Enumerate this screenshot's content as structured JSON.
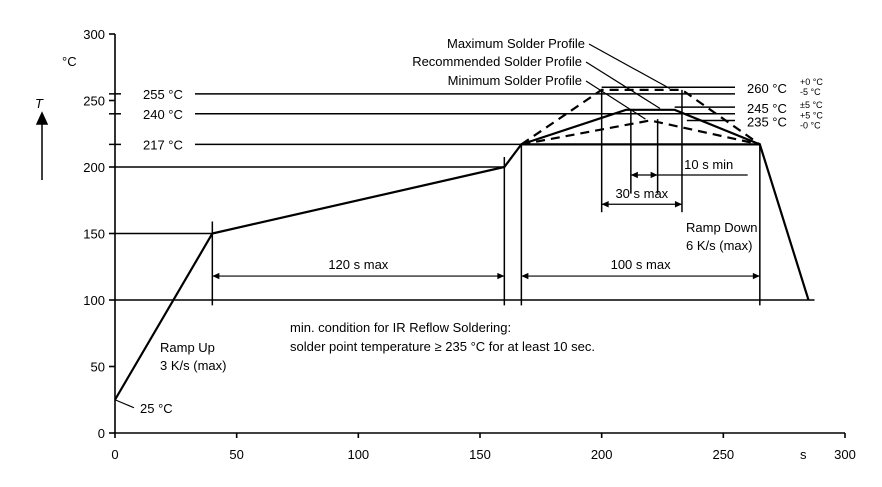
{
  "chart_data": {
    "type": "line",
    "title": "",
    "xlabel": "s",
    "ylabel": "T",
    "y_unit": "°C",
    "xlim": [
      0,
      300
    ],
    "ylim": [
      0,
      300
    ],
    "x_ticks": [
      0,
      50,
      100,
      150,
      200,
      250,
      300
    ],
    "y_ticks": [
      0,
      50,
      100,
      150,
      200,
      250,
      300
    ],
    "y_tick_labels": [
      "0",
      "50",
      "100",
      "150",
      "200",
      "250",
      "300"
    ],
    "x_tick_labels": [
      "0",
      "50",
      "100",
      "150",
      "200",
      "250",
      "300"
    ],
    "grid": false,
    "profile": {
      "x": [
        0,
        40,
        160,
        167,
        265,
        285
      ],
      "y": [
        25,
        150,
        200,
        217,
        217,
        100
      ]
    },
    "series": [
      {
        "name": "Maximum Solder Profile",
        "style": "dashed",
        "x": [
          167,
          200,
          233,
          265
        ],
        "y": [
          217,
          258,
          258,
          217
        ]
      },
      {
        "name": "Recommended Solder Profile",
        "style": "solid",
        "x": [
          167,
          210,
          230,
          265
        ],
        "y": [
          217,
          243,
          243,
          217
        ]
      },
      {
        "name": "Minimum Solder Profile",
        "style": "dashed",
        "x": [
          167,
          220,
          265
        ],
        "y": [
          217,
          235,
          217
        ]
      }
    ],
    "reference_lines": [
      {
        "label": "255 °C",
        "y": 255
      },
      {
        "label": "240 °C",
        "y": 240
      },
      {
        "label": "217 °C",
        "y": 217
      }
    ],
    "right_labels": [
      {
        "label": "260 °C",
        "sup": "+0 °C",
        "sub": "-5 °C",
        "y": 260
      },
      {
        "label": "245 °C",
        "tol": "±5 °C",
        "y": 245
      },
      {
        "label": "235 °C",
        "sup": "+5 °C",
        "sub": "-0 °C",
        "y": 235
      }
    ],
    "annotations": {
      "ramp_up": [
        "Ramp Up",
        "3 K/s (max)"
      ],
      "ramp_down": [
        "Ramp Down",
        "6 K/s (max)"
      ],
      "start": "25 °C",
      "dur_120": "120 s max",
      "dur_100": "100 s max",
      "dur_30": "30 s max",
      "dur_10": "10 s min",
      "condition": [
        "min. condition for IR Reflow Soldering:",
        "solder point temperature ≥ 235 °C for at least 10 sec."
      ]
    }
  }
}
